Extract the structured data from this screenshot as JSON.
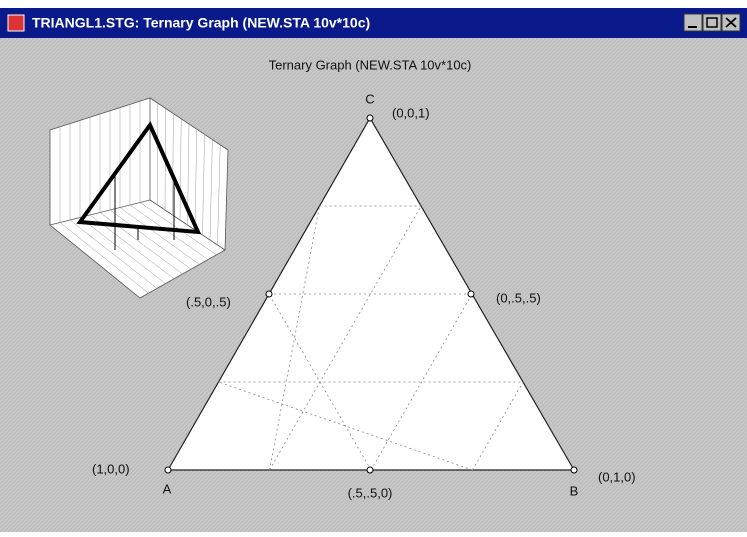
{
  "window": {
    "title": "TRIANGL1.STG: Ternary Graph (NEW.STA 10v*10c)"
  },
  "graph": {
    "title": "Ternary Graph (NEW.STA 10v*10c)",
    "vertices": [
      "A",
      "B",
      "C"
    ],
    "point_labels": [
      "(0,0,1)",
      "(.5,0,.5)",
      "(0,.5,.5)",
      "(1,0,0)",
      "(.5,.5,0)",
      "(0,1,0)"
    ]
  }
}
